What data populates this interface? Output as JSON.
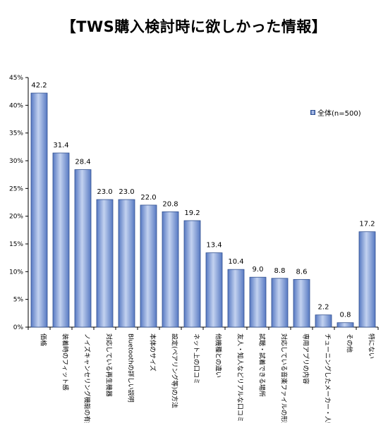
{
  "title": "【TWS購入検討時に欲しかった情報】",
  "legend_label": "全体(n=500)",
  "colors": {
    "bar_edge": "#2f4f8f",
    "bar_dark": "#5779c2",
    "bar_light": "#c3d2f0",
    "axis": "#000000"
  },
  "chart_data": {
    "type": "bar",
    "title": "【TWS購入検討時に欲しかった情報】",
    "categories": [
      "価格",
      "装着時のフィット感",
      "ノイズキャンセリング機能の有無",
      "対応している再生機器",
      "Bluetoothの詳しい説明",
      "本体のサイズ",
      "設定(ペアリング等)の方法",
      "ネット上の口コミ",
      "他機種との違い",
      "友人・知人などリアルな口コミ",
      "試聴・試着できる場所",
      "対応している音楽ファイルの形式",
      "専用アプリの内容",
      "チューニングしたメーカー・人物",
      "その他",
      "特にない"
    ],
    "series": [
      {
        "name": "全体(n=500)",
        "values": [
          42.2,
          31.4,
          28.4,
          23.0,
          23.0,
          22.0,
          20.8,
          19.2,
          13.4,
          10.4,
          9.0,
          8.8,
          8.6,
          2.2,
          0.8,
          17.2
        ]
      }
    ],
    "value_labels": [
      "42.2",
      "31.4",
      "28.4",
      "23.0",
      "23.0",
      "22.0",
      "20.8",
      "19.2",
      "13.4",
      "10.4",
      "9.0",
      "8.8",
      "8.6",
      "2.2",
      "0.8",
      "17.2"
    ],
    "ylim": [
      0,
      45
    ],
    "yticks": [
      0,
      5,
      10,
      15,
      20,
      25,
      30,
      35,
      40,
      45
    ],
    "ytick_labels": [
      "0%",
      "5%",
      "10%",
      "15%",
      "20%",
      "25%",
      "30%",
      "35%",
      "40%",
      "45%"
    ],
    "legend_position": "top-right",
    "grid": false
  }
}
